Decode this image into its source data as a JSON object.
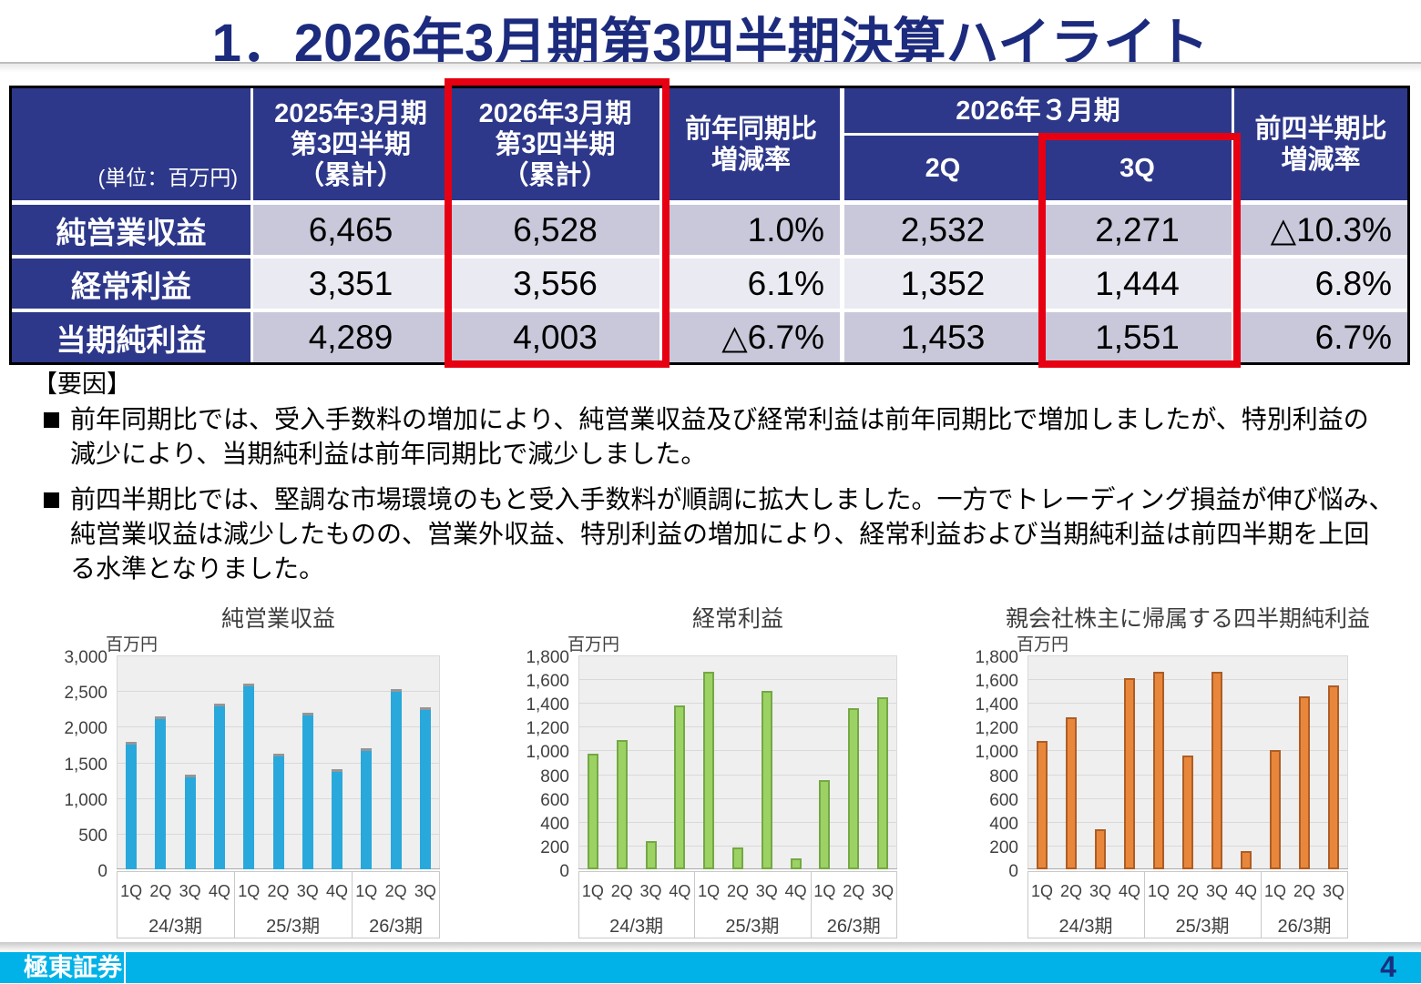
{
  "title": "1．2026年3月期第3四半期決算ハイライト",
  "accent": {
    "navy": "#2D388A",
    "red": "#E60012",
    "cyan": "#00B2E8"
  },
  "table": {
    "unit_note": "(単位：百万円)",
    "headers": {
      "prev_cum": "2025年3月期\n第3四半期\n（累計）",
      "curr_cum": "2026年3月期\n第3四半期\n（累計）",
      "yoy": "前年同期比\n増減率",
      "fy_span": "2026年３月期",
      "q2": "2Q",
      "q3": "3Q",
      "qoq": "前四半期比\n増減率"
    },
    "rows": [
      {
        "label": "純営業収益",
        "prev": "6,465",
        "curr": "6,528",
        "yoy": "1.0%",
        "q2": "2,532",
        "q3": "2,271",
        "qoq": "△10.3%"
      },
      {
        "label": "経常利益",
        "prev": "3,351",
        "curr": "3,556",
        "yoy": "6.1%",
        "q2": "1,352",
        "q3": "1,444",
        "qoq": "6.8%"
      },
      {
        "label": "当期純利益",
        "prev": "4,289",
        "curr": "4,003",
        "yoy": "△6.7%",
        "q2": "1,453",
        "q3": "1,551",
        "qoq": "6.7%"
      }
    ]
  },
  "factors": {
    "heading": "【要因】",
    "bullets": [
      "前年同期比では、受入手数料の増加により、純営業収益及び経常利益は前年同期比で増加しましたが、特別利益の\n減少により、当期純利益は前年同期比で減少しました。",
      "前四半期比では、堅調な市場環境のもと受入手数料が順調に拡大しました。一方でトレーディング損益が伸び悩み、\n純営業収益は減少したものの、営業外収益、特別利益の増加により、経常利益および当期純利益は前四半期を上回\nる水準となりました。"
    ]
  },
  "chart_data": [
    {
      "type": "bar",
      "title": "純営業収益",
      "ylabel": "百万円",
      "ylim": [
        0,
        3000
      ],
      "ytick_step": 500,
      "categories": [
        "1Q",
        "2Q",
        "3Q",
        "4Q",
        "1Q",
        "2Q",
        "3Q",
        "4Q",
        "1Q",
        "2Q",
        "3Q"
      ],
      "group_labels": [
        "24/3期",
        "25/3期",
        "26/3期"
      ],
      "group_sizes": [
        4,
        4,
        3
      ],
      "values": [
        1790,
        2140,
        1330,
        2320,
        2610,
        1620,
        2190,
        1410,
        1700,
        2532,
        2271
      ],
      "bar_color": "#29A8DC",
      "bar_border": "#969696",
      "bar_border_width": "3px 0 0 0"
    },
    {
      "type": "bar",
      "title": "経常利益",
      "ylabel": "百万円",
      "ylim": [
        0,
        1800
      ],
      "ytick_step": 200,
      "categories": [
        "1Q",
        "2Q",
        "3Q",
        "4Q",
        "1Q",
        "2Q",
        "3Q",
        "4Q",
        "1Q",
        "2Q",
        "3Q"
      ],
      "group_labels": [
        "24/3期",
        "25/3期",
        "26/3期"
      ],
      "group_sizes": [
        4,
        4,
        3
      ],
      "values": [
        970,
        1090,
        240,
        1380,
        1660,
        185,
        1500,
        90,
        750,
        1352,
        1444
      ],
      "bar_color": "#9CD264",
      "bar_border": "#74A844",
      "bar_border_width": "2px"
    },
    {
      "type": "bar",
      "title": "親会社株主に帰属する四半期純利益",
      "ylabel": "百万円",
      "ylim": [
        0,
        1800
      ],
      "ytick_step": 200,
      "categories": [
        "1Q",
        "2Q",
        "3Q",
        "4Q",
        "1Q",
        "2Q",
        "3Q",
        "4Q",
        "1Q",
        "2Q",
        "3Q"
      ],
      "group_labels": [
        "24/3期",
        "25/3期",
        "26/3期"
      ],
      "group_sizes": [
        4,
        4,
        3
      ],
      "values": [
        1080,
        1280,
        335,
        1610,
        1660,
        955,
        1660,
        150,
        1000,
        1453,
        1551
      ],
      "bar_color": "#E8873B",
      "bar_border": "#AE5D25",
      "bar_border_width": "2px"
    }
  ],
  "footer": {
    "brand": "極東証券",
    "page_number": "4"
  }
}
